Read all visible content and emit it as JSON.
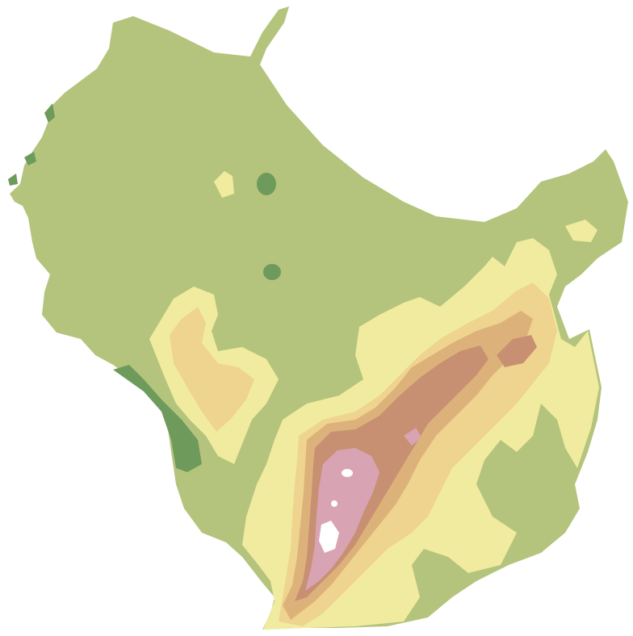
{
  "map": {
    "type": "elevation-relief",
    "bands": [
      {
        "name": "lowland-dark",
        "color": "#6e9a5c"
      },
      {
        "name": "lowland",
        "color": "#b4c47c"
      },
      {
        "name": "hill-light",
        "color": "#f1eba0"
      },
      {
        "name": "hill",
        "color": "#eed48e"
      },
      {
        "name": "upland",
        "color": "#ddb27a"
      },
      {
        "name": "mountain",
        "color": "#c89072"
      },
      {
        "name": "high-mountain",
        "color": "#d8a4b4"
      },
      {
        "name": "peak",
        "color": "#ffffff"
      }
    ]
  }
}
